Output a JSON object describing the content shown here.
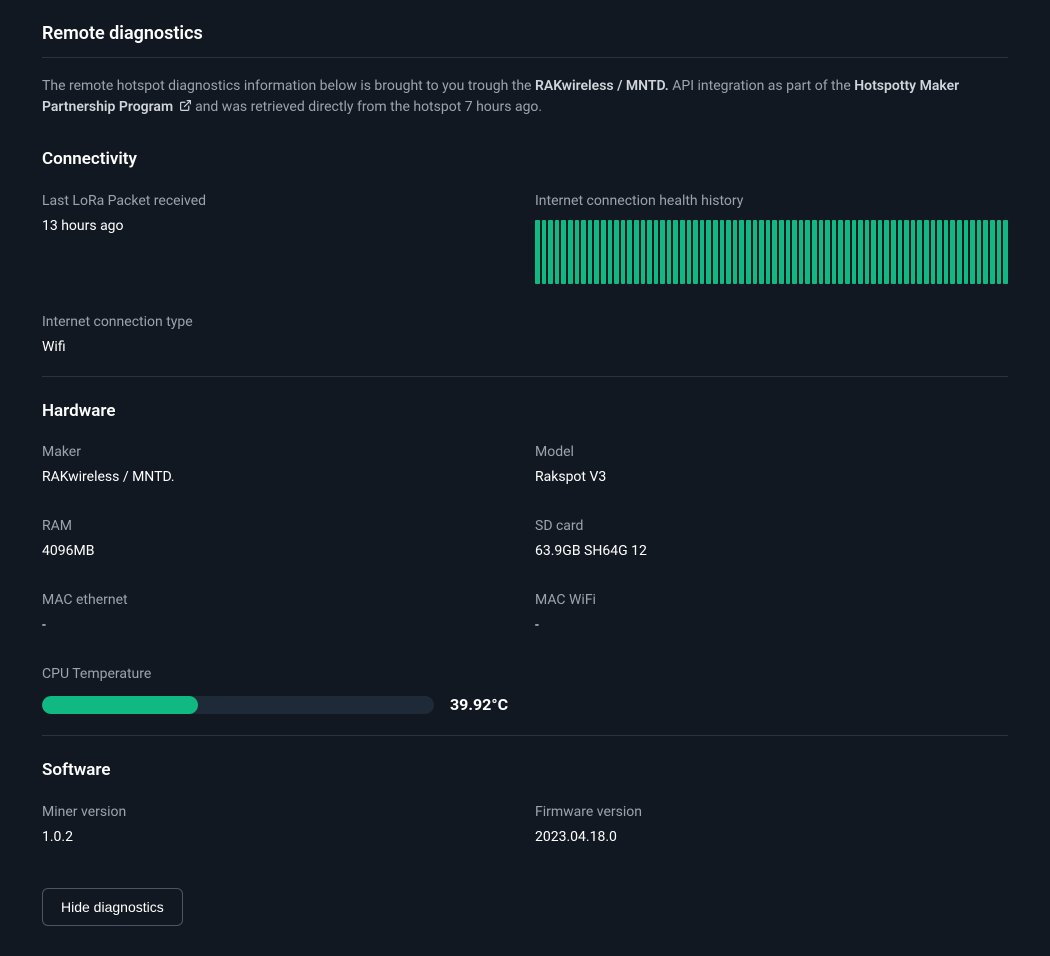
{
  "colors": {
    "bg": "#111821",
    "text_primary": "#ffffff",
    "text_muted": "#9ca3af",
    "text_semi": "#d1d5db",
    "divider": "#2a3340",
    "accent": "#10b981",
    "progress_track": "#1e2a37",
    "btn_border": "#4b5563"
  },
  "header": {
    "title": "Remote diagnostics",
    "intro_prefix": "The remote hotspot diagnostics information below is brought to you trough the ",
    "maker_bold": "RAKwireless / MNTD.",
    "intro_mid": " API integration as part of the ",
    "link_text": "Hotspotty Maker Partnership Program",
    "intro_suffix": " and was retrieved directly from the hotspot 7 hours ago."
  },
  "connectivity": {
    "title": "Connectivity",
    "last_packet_label": "Last LoRa Packet received",
    "last_packet_value": "13 hours ago",
    "health_label": "Internet connection health history",
    "health_bars_count": 72,
    "health_bar_color": "#10b981",
    "conn_type_label": "Internet connection type",
    "conn_type_value": "Wifi"
  },
  "hardware": {
    "title": "Hardware",
    "maker_label": "Maker",
    "maker_value": "RAKwireless / MNTD.",
    "model_label": "Model",
    "model_value": "Rakspot V3",
    "ram_label": "RAM",
    "ram_value": "4096MB",
    "sd_label": "SD card",
    "sd_value": "63.9GB SH64G 12",
    "mac_eth_label": "MAC ethernet",
    "mac_eth_value": "-",
    "mac_wifi_label": "MAC WiFi",
    "mac_wifi_value": "-",
    "cpu_temp_label": "CPU Temperature",
    "cpu_temp_value": "39.92°C",
    "cpu_temp_percent": 39.92,
    "cpu_fill_color": "#10b981"
  },
  "software": {
    "title": "Software",
    "miner_label": "Miner version",
    "miner_value": "1.0.2",
    "firmware_label": "Firmware version",
    "firmware_value": "2023.04.18.0"
  },
  "actions": {
    "hide_label": "Hide diagnostics"
  }
}
